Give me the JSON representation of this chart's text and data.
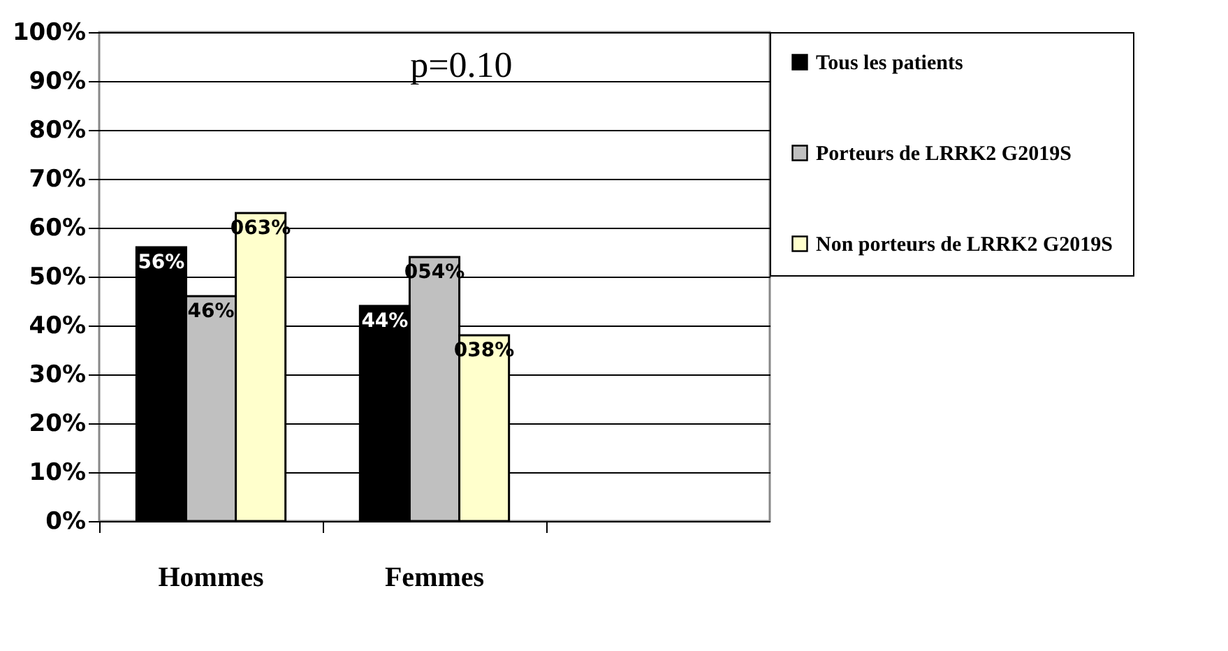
{
  "chart_data": {
    "type": "bar",
    "annotations": [
      "p=0.10"
    ],
    "categories": [
      "Hommes",
      "Femmes",
      null
    ],
    "series": [
      {
        "name": "Tous les patients",
        "color": "#000000",
        "values": [
          56,
          44,
          null
        ],
        "value_labels": [
          "56%",
          "44%",
          null
        ]
      },
      {
        "name": "Porteurs de LRRK2 G2019S",
        "color": "#c0c0c0",
        "values": [
          46,
          54,
          null
        ],
        "value_labels": [
          "46%",
          "054%",
          null
        ]
      },
      {
        "name": "Non porteurs de LRRK2 G2019S",
        "color": "#ffffcc",
        "values": [
          63,
          38,
          null
        ],
        "value_labels": [
          "063%",
          "038%",
          null
        ]
      }
    ],
    "ylim": [
      0,
      100
    ],
    "yticks": [
      {
        "value": 0,
        "label": "0%"
      },
      {
        "value": 10,
        "label": "10%"
      },
      {
        "value": 20,
        "label": "20%"
      },
      {
        "value": 30,
        "label": "30%"
      },
      {
        "value": 40,
        "label": "40%"
      },
      {
        "value": 50,
        "label": "50%"
      },
      {
        "value": 60,
        "label": "60%"
      },
      {
        "value": 70,
        "label": "70%"
      },
      {
        "value": 80,
        "label": "80%"
      },
      {
        "value": 90,
        "label": "90%"
      },
      {
        "value": 100,
        "label": "100%"
      }
    ],
    "grid": "y",
    "legend": "right"
  }
}
